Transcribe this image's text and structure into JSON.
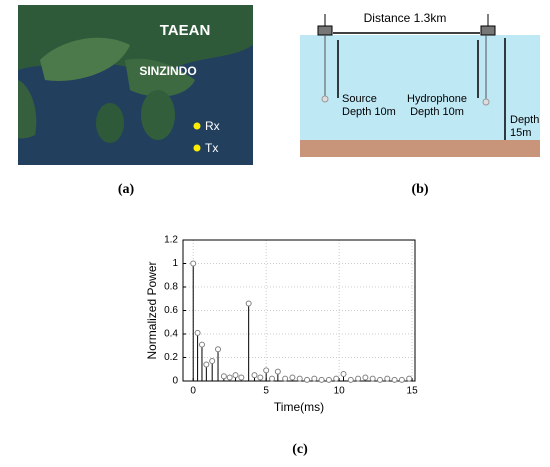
{
  "panel_a": {
    "label": "(a)",
    "places": [
      "TAEAN",
      "SINZINDO"
    ],
    "markers": [
      "Rx",
      "Tx"
    ]
  },
  "panel_b": {
    "label": "(b)",
    "distance": "Distance 1.3km",
    "source": [
      "Source",
      "Depth 10m"
    ],
    "hydrophone": [
      "Hydrophone",
      "Depth 10m"
    ],
    "depth": [
      "Depth",
      "15m"
    ]
  },
  "panel_c": {
    "label": "(c)"
  },
  "chart_data": {
    "type": "stem",
    "ylabel": "Normalized Power",
    "xlabel": "Time(ms)",
    "x": [
      0,
      0.3,
      0.6,
      0.9,
      1.3,
      1.7,
      2.1,
      2.5,
      2.9,
      3.3,
      3.8,
      4.2,
      4.6,
      5.0,
      5.4,
      5.8,
      6.3,
      6.8,
      7.3,
      7.8,
      8.3,
      8.8,
      9.3,
      9.8,
      10.3,
      10.8,
      11.3,
      11.8,
      12.3,
      12.8,
      13.3,
      13.8,
      14.3,
      14.8
    ],
    "values": [
      1.0,
      0.41,
      0.31,
      0.14,
      0.17,
      0.27,
      0.04,
      0.03,
      0.05,
      0.03,
      0.66,
      0.05,
      0.03,
      0.09,
      0.02,
      0.08,
      0.02,
      0.03,
      0.02,
      0.01,
      0.02,
      0.01,
      0.01,
      0.02,
      0.06,
      0.01,
      0.02,
      0.03,
      0.02,
      0.01,
      0.02,
      0.01,
      0.01,
      0.02
    ],
    "color": "#808080",
    "xlim": [
      -0.7,
      15.2
    ],
    "xticks": [
      0,
      5,
      10,
      15
    ],
    "ylim": [
      0,
      1.2
    ],
    "yticks": [
      0,
      0.2,
      0.4,
      0.6,
      0.8,
      1,
      1.2
    ],
    "grid": true
  }
}
